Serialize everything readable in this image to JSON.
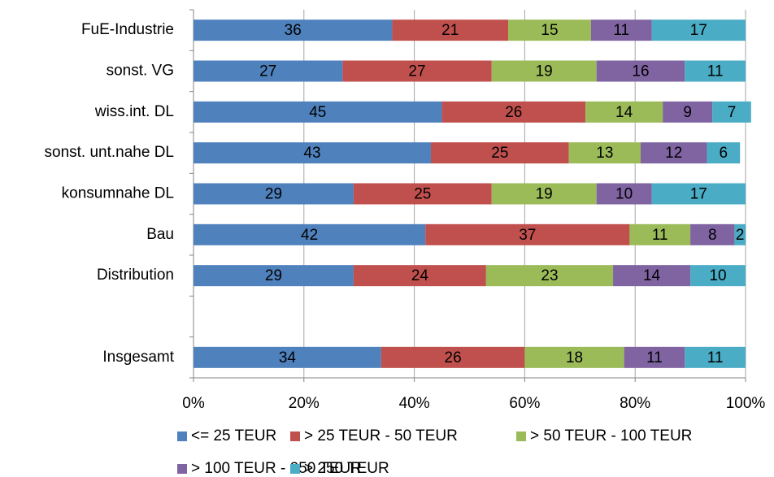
{
  "chart_data": {
    "type": "bar",
    "orientation": "horizontal",
    "stacked": true,
    "categories": [
      "FuE-Industrie",
      "sonst. VG",
      "wiss.int. DL",
      "sonst. unt.nahe DL",
      "konsumnahe DL",
      "Bau",
      "Distribution",
      null,
      "Insgesamt"
    ],
    "series": [
      {
        "name": "<= 25 TEUR",
        "color": "#4f81bd",
        "values": [
          36,
          27,
          45,
          43,
          29,
          42,
          29,
          null,
          34
        ]
      },
      {
        "name": "> 25 TEUR - 50 TEUR",
        "color": "#c0504d",
        "values": [
          21,
          27,
          26,
          25,
          25,
          37,
          24,
          null,
          26
        ]
      },
      {
        "name": "> 50 TEUR - 100 TEUR",
        "color": "#9bbb59",
        "values": [
          15,
          19,
          14,
          13,
          19,
          11,
          23,
          null,
          18
        ]
      },
      {
        "name": "> 100 TEUR - 250 TEUR",
        "color": "#8064a2",
        "values": [
          11,
          16,
          9,
          12,
          10,
          8,
          14,
          null,
          11
        ]
      },
      {
        "name": "> 250 TEUR",
        "color": "#4bacc6",
        "values": [
          17,
          11,
          7,
          6,
          17,
          2,
          10,
          null,
          11
        ]
      }
    ],
    "xlim": [
      0,
      100
    ],
    "xticks": [
      {
        "value": 0,
        "label": "0%"
      },
      {
        "value": 20,
        "label": "20%"
      },
      {
        "value": 40,
        "label": "40%"
      },
      {
        "value": 60,
        "label": "60%"
      },
      {
        "value": 80,
        "label": "80%"
      },
      {
        "value": 100,
        "label": "100%"
      }
    ],
    "grid": true,
    "legend": "bottom"
  }
}
